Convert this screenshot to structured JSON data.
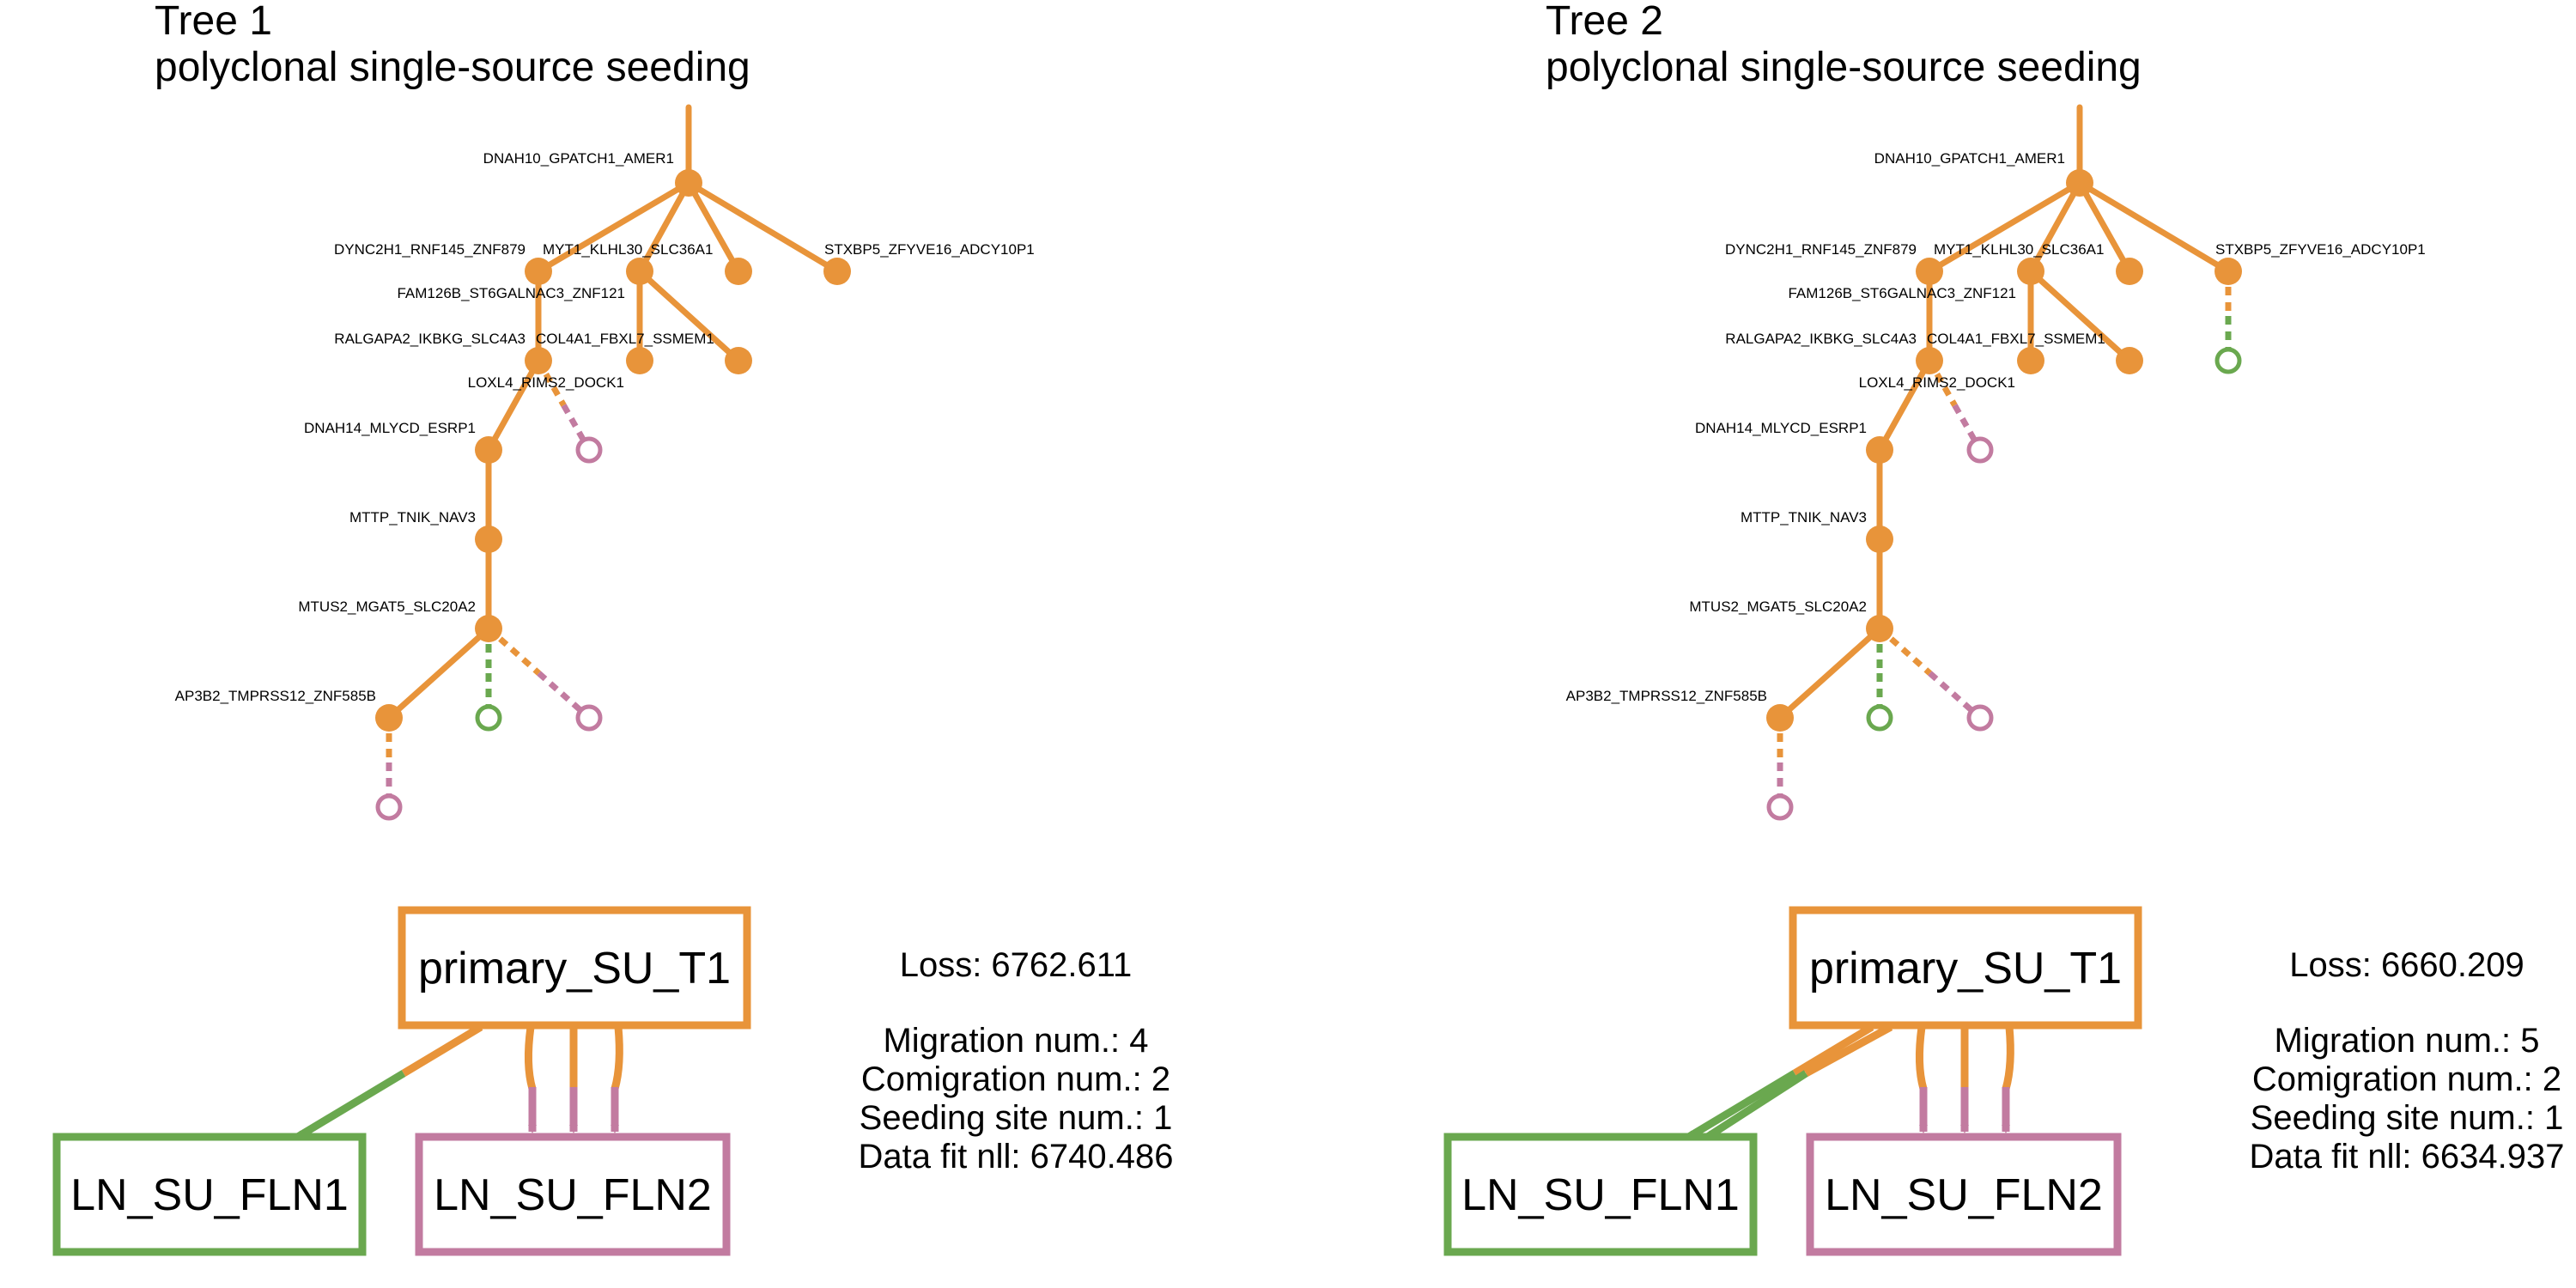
{
  "colors": {
    "primary": "#E8943A",
    "ln1": "#6AA84F",
    "ln2": "#C27BA0"
  },
  "panels": [
    {
      "title_line1": "Tree 1",
      "title_line2": "polyclonal single-source seeding",
      "tree": {
        "labels": {
          "root": "DNAH10_GPATCH1_AMER1",
          "dync": "DYNC2H1_RNF145_ZNF879",
          "myt1": "MYT1_KLHL30_SLC36A1",
          "stxbp5": "STXBP5_ZFYVE16_ADCY10P1",
          "fam126b": "FAM126B_ST6GALNAC3_ZNF121",
          "ralgapa2": "RALGAPA2_IKBKG_SLC4A3",
          "col4a1": "COL4A1_FBXL7_SSMEM1",
          "loxl4": "LOXL4_RIMS2_DOCK1",
          "dnah14": "DNAH14_MLYCD_ESRP1",
          "mttp": "MTTP_TNIK_NAV3",
          "mtus2": "MTUS2_MGAT5_SLC20A2",
          "ap3b2": "AP3B2_TMPRSS12_ZNF585B"
        },
        "stxbp5_leaf_site": "none"
      },
      "migration_graph": {
        "source": "primary_SU_T1",
        "targets": [
          "LN_SU_FLN1",
          "LN_SU_FLN2"
        ],
        "edges_to_ln1": 1,
        "edges_to_ln2": 3
      },
      "stats": {
        "loss": "Loss: 6762.611",
        "migration": "Migration num.: 4",
        "comigration": "Comigration num.: 2",
        "seeding": "Seeding site num.: 1",
        "datafit": "Data fit nll: 6740.486"
      }
    },
    {
      "title_line1": "Tree 2",
      "title_line2": "polyclonal single-source seeding",
      "tree": {
        "labels": {
          "root": "DNAH10_GPATCH1_AMER1",
          "dync": "DYNC2H1_RNF145_ZNF879",
          "myt1": "MYT1_KLHL30_SLC36A1",
          "stxbp5": "STXBP5_ZFYVE16_ADCY10P1",
          "fam126b": "FAM126B_ST6GALNAC3_ZNF121",
          "ralgapa2": "RALGAPA2_IKBKG_SLC4A3",
          "col4a1": "COL4A1_FBXL7_SSMEM1",
          "loxl4": "LOXL4_RIMS2_DOCK1",
          "dnah14": "DNAH14_MLYCD_ESRP1",
          "mttp": "MTTP_TNIK_NAV3",
          "mtus2": "MTUS2_MGAT5_SLC20A2",
          "ap3b2": "AP3B2_TMPRSS12_ZNF585B"
        },
        "stxbp5_leaf_site": "LN_SU_FLN1"
      },
      "migration_graph": {
        "source": "primary_SU_T1",
        "targets": [
          "LN_SU_FLN1",
          "LN_SU_FLN2"
        ],
        "edges_to_ln1": 2,
        "edges_to_ln2": 3
      },
      "stats": {
        "loss": "Loss: 6660.209",
        "migration": "Migration num.: 5",
        "comigration": "Comigration num.: 2",
        "seeding": "Seeding site num.: 1",
        "datafit": "Data fit nll: 6634.937"
      }
    }
  ]
}
